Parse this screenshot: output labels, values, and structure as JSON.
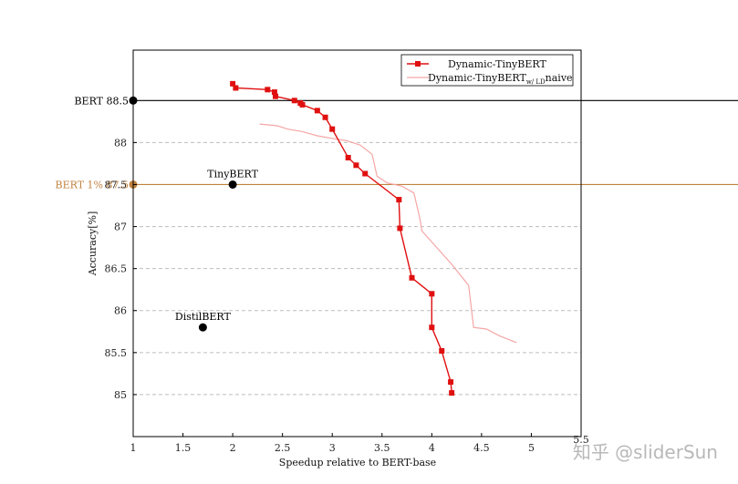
{
  "chart_data": {
    "type": "line",
    "title": "",
    "xlabel": "Speedup relative to BERT-base",
    "ylabel": "Accuracy[%]",
    "xlim": [
      1,
      5.5
    ],
    "ylim": [
      84.5,
      89.1
    ],
    "x_ticks": [
      1,
      1.5,
      2,
      2.5,
      3,
      3.5,
      4,
      4.5,
      5
    ],
    "x_ticks_tail": "5.5",
    "y_ticks": [
      85,
      85.5,
      86,
      86.5,
      87,
      87.5,
      88
    ],
    "grid": "horizontal dashed",
    "legend_position": "top-right",
    "series": [
      {
        "name": "Dynamic-TinyBERT",
        "color": "#e01010",
        "marker": "square",
        "points": [
          [
            2.0,
            88.7
          ],
          [
            2.03,
            88.65
          ],
          [
            2.35,
            88.63
          ],
          [
            2.42,
            88.6
          ],
          [
            2.43,
            88.55
          ],
          [
            2.62,
            88.5
          ],
          [
            2.68,
            88.47
          ],
          [
            2.7,
            88.45
          ],
          [
            2.85,
            88.38
          ],
          [
            2.93,
            88.3
          ],
          [
            3.0,
            88.16
          ],
          [
            3.16,
            87.82
          ],
          [
            3.24,
            87.73
          ],
          [
            3.33,
            87.63
          ],
          [
            3.67,
            87.32
          ],
          [
            3.68,
            86.98
          ],
          [
            3.8,
            86.39
          ],
          [
            4.0,
            86.2
          ],
          [
            4.0,
            85.8
          ],
          [
            4.1,
            85.52
          ],
          [
            4.19,
            85.15
          ],
          [
            4.2,
            85.02
          ]
        ]
      },
      {
        "name": "Dynamic-TinyBERT",
        "name_sub": "w/ LD",
        "name_suffix": "naive",
        "color": "#f5a6a6",
        "marker": "none",
        "points": [
          [
            2.27,
            88.22
          ],
          [
            2.45,
            88.2
          ],
          [
            2.55,
            88.16
          ],
          [
            2.7,
            88.13
          ],
          [
            2.85,
            88.08
          ],
          [
            3.0,
            88.05
          ],
          [
            3.15,
            88.02
          ],
          [
            3.28,
            87.97
          ],
          [
            3.4,
            87.86
          ],
          [
            3.45,
            87.6
          ],
          [
            3.55,
            87.52
          ],
          [
            3.7,
            87.48
          ],
          [
            3.82,
            87.4
          ],
          [
            3.88,
            87.1
          ],
          [
            3.9,
            86.95
          ],
          [
            4.05,
            86.75
          ],
          [
            4.2,
            86.55
          ],
          [
            4.37,
            86.3
          ],
          [
            4.42,
            85.8
          ],
          [
            4.55,
            85.78
          ],
          [
            4.68,
            85.7
          ],
          [
            4.85,
            85.62
          ]
        ]
      }
    ],
    "reference_lines": [
      {
        "label": "BERT 88.5",
        "y": 88.5,
        "color": "#000000"
      },
      {
        "label": "BERT 1% 87.5",
        "y": 87.5,
        "color": "#c0823e"
      }
    ],
    "annotated_points": [
      {
        "label": "TinyBERT",
        "x": 2.0,
        "y": 87.5,
        "color": "#000000"
      },
      {
        "label": "DistilBERT",
        "x": 1.7,
        "y": 85.8,
        "color": "#000000"
      }
    ]
  },
  "watermark": "知乎 @sliderSun"
}
